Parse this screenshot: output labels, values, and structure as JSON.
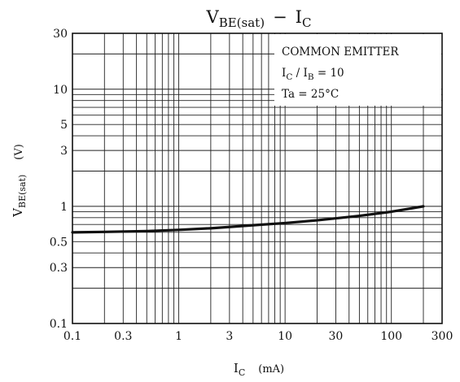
{
  "chart_data": {
    "type": "line",
    "title": {
      "main": "V",
      "sub": "BE(sat)",
      "dash": "−",
      "main2": "I",
      "sub2": "C"
    },
    "xlabel": {
      "main": "I",
      "sub": "C",
      "unit": "(mA)"
    },
    "ylabel": {
      "main": "V",
      "sub": "BE(sat)",
      "unit": "(V)"
    },
    "x_scale": "log",
    "y_scale": "log",
    "xlim": [
      0.1,
      300
    ],
    "ylim": [
      0.1,
      30
    ],
    "grid": true,
    "x_ticks": [
      {
        "value": 0.1,
        "label": "0.1"
      },
      {
        "value": 0.3,
        "label": "0.3"
      },
      {
        "value": 1,
        "label": "1"
      },
      {
        "value": 3,
        "label": "3"
      },
      {
        "value": 10,
        "label": "10"
      },
      {
        "value": 30,
        "label": "30"
      },
      {
        "value": 100,
        "label": "100"
      },
      {
        "value": 300,
        "label": "300"
      }
    ],
    "y_ticks": [
      {
        "value": 0.1,
        "label": "0.1"
      },
      {
        "value": 0.3,
        "label": "0.3"
      },
      {
        "value": 0.5,
        "label": "0.5"
      },
      {
        "value": 1,
        "label": "1"
      },
      {
        "value": 3,
        "label": "3"
      },
      {
        "value": 5,
        "label": "5"
      },
      {
        "value": 10,
        "label": "10"
      },
      {
        "value": 30,
        "label": "30"
      }
    ],
    "annotation": {
      "line1": "COMMON EMITTER",
      "line2": {
        "a": "I",
        "a_sub": "C",
        "mid": " / I",
        "b_sub": "B",
        "tail": " = 10"
      },
      "line3": "Ta = 25°C"
    },
    "series": [
      {
        "x": [
          0.1,
          0.2,
          0.5,
          1,
          2,
          5,
          10,
          20,
          50,
          100,
          200
        ],
        "y": [
          0.6,
          0.605,
          0.615,
          0.63,
          0.65,
          0.69,
          0.72,
          0.76,
          0.83,
          0.9,
          1.0
        ],
        "color": "#111111"
      }
    ]
  }
}
